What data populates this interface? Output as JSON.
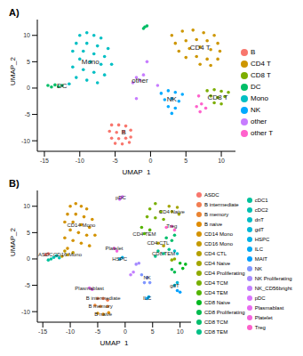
{
  "chart_data": [
    {
      "type": "scatter",
      "title": "A)",
      "x_label": "UMAP_1",
      "y_label": "UMAP_2",
      "xlim": [
        -16,
        12
      ],
      "ylim": [
        -12,
        13
      ],
      "xticks": [
        -15,
        -10,
        -5,
        0,
        5,
        10
      ],
      "yticks": [
        -10,
        -5,
        0,
        5,
        10
      ],
      "legend": "right",
      "series": [
        {
          "name": "B",
          "color": "#F8766D",
          "x": [
            -5.5,
            -4.5,
            -3.5,
            -5.8,
            -4.8,
            -3.8,
            -2.8,
            -5.5,
            -4.5,
            -3.5,
            -2.8,
            -5,
            -4,
            -3
          ],
          "y": [
            -7,
            -7,
            -7.2,
            -8.2,
            -8.4,
            -8.3,
            -8,
            -9.5,
            -9.6,
            -9.5,
            -9.3,
            -10.5,
            -10.6,
            -10.3
          ]
        },
        {
          "name": "CD4 T",
          "color": "#CD9600",
          "x": [
            3,
            4.5,
            6,
            7.5,
            9,
            3.5,
            5,
            6.5,
            8,
            9.5,
            4,
            5.5,
            7,
            8.5,
            9.8,
            5,
            6.5,
            8,
            9.5,
            7,
            8.5
          ],
          "y": [
            10,
            10.8,
            11,
            10.5,
            10,
            8.5,
            9,
            9.2,
            9,
            8.5,
            7,
            7.5,
            7.8,
            7.3,
            7,
            5.8,
            6,
            5.5,
            5.5,
            4.5,
            4.3
          ]
        },
        {
          "name": "CD8 T",
          "color": "#7CAE00",
          "x": [
            8,
            9,
            10,
            11,
            8.5,
            9.5,
            10.5,
            9,
            10
          ],
          "y": [
            -0.5,
            -0.3,
            -0.6,
            -0.8,
            -1.5,
            -1.8,
            -1.6,
            -2.8,
            -3
          ]
        },
        {
          "name": "DC",
          "color": "#00BE67",
          "x": [
            -14.5,
            -14,
            -13.5,
            -13,
            -12.5,
            -0.8,
            -0.5,
            -1
          ],
          "y": [
            0.5,
            0.2,
            0.6,
            0.3,
            0.5,
            11.6,
            11.8,
            11.3
          ]
        },
        {
          "name": "Mono",
          "color": "#00BFC4",
          "x": [
            -10,
            -9,
            -8,
            -7,
            -10.5,
            -9,
            -7.5,
            -6,
            -11,
            -9.5,
            -8,
            -6.5,
            -10,
            -8.5,
            -7,
            -5.5,
            -11,
            -9.5,
            -8,
            -6.5,
            -10.5,
            -9,
            -11.5,
            -7.5
          ],
          "y": [
            10,
            10.5,
            10,
            9.5,
            8.5,
            8.5,
            8,
            7.5,
            7,
            7,
            6.5,
            6,
            5.5,
            5,
            4.5,
            4.5,
            4,
            3.5,
            3,
            2.5,
            2,
            1.5,
            0.8,
            1
          ]
        },
        {
          "name": "NK",
          "color": "#00A9FF",
          "x": [
            1.5,
            2.5,
            3.5,
            4.5,
            2,
            3,
            4,
            2.5,
            3.5,
            3
          ],
          "y": [
            -1,
            -0.5,
            -0.8,
            -1.2,
            -2.2,
            -2,
            -2.5,
            -3.5,
            -3.8,
            -4.8
          ]
        },
        {
          "name": "other",
          "color": "#C77CFF",
          "x": [
            -2,
            -1.5,
            -2.5,
            -1,
            1,
            -2,
            -0.5
          ],
          "y": [
            2,
            1.5,
            1,
            2.5,
            0.5,
            -2,
            5
          ]
        },
        {
          "name": "other T",
          "color": "#FF61CC",
          "x": [
            6.5,
            7.2,
            7.8,
            7,
            6.8
          ],
          "y": [
            -3.5,
            -3,
            -3.8,
            -4.5,
            -1.5
          ]
        }
      ]
    },
    {
      "type": "scatter",
      "title": "B)",
      "x_label": "UMAP_1",
      "y_label": "UMAP_2",
      "xlim": [
        -16,
        12
      ],
      "ylim": [
        -12,
        13
      ],
      "xticks": [
        -15,
        -10,
        -5,
        0,
        5,
        10
      ],
      "yticks": [
        -10,
        -5,
        0,
        5,
        10
      ],
      "legend": "right",
      "series": [
        {
          "name": "ASDC",
          "color": "#F8766D",
          "x": [
            -14.5,
            -14
          ],
          "y": [
            0.8,
            1
          ]
        },
        {
          "name": "B intermediate",
          "color": "#F27D52",
          "x": [
            -5,
            -4,
            -3.2
          ],
          "y": [
            -7.5,
            -7.5,
            -7.8
          ]
        },
        {
          "name": "B memory",
          "color": "#EA8331",
          "x": [
            -5.5,
            -4.5,
            -3.2
          ],
          "y": [
            -8.8,
            -9,
            -9
          ]
        },
        {
          "name": "B naive",
          "color": "#E08B00",
          "x": [
            -5,
            -4,
            -3
          ],
          "y": [
            -10.3,
            -10.5,
            -10.2
          ]
        },
        {
          "name": "CD14 Mono",
          "color": "#D39200",
          "x": [
            -10,
            -9,
            -8,
            -7,
            -10.5,
            -9,
            -7.5,
            -6,
            -11,
            -9.5,
            -8,
            -6.5,
            -10,
            -8.5,
            -7,
            -5.5,
            -11,
            -9.5,
            -8,
            -6.5,
            -10.5
          ],
          "y": [
            10,
            10.5,
            10,
            9.5,
            8.5,
            8.5,
            8,
            7.5,
            7,
            7,
            6.5,
            6,
            5.5,
            5,
            4.5,
            4.5,
            4,
            3.5,
            3,
            2.5,
            2
          ]
        },
        {
          "name": "CD16 Mono",
          "color": "#C49A00",
          "x": [
            -11,
            -10.5,
            -9.5,
            -11.5
          ],
          "y": [
            1.5,
            0.8,
            1.2,
            0.5
          ]
        },
        {
          "name": "CD4 CTL",
          "color": "#B49F00",
          "x": [
            6,
            7
          ],
          "y": [
            3,
            2.5
          ]
        },
        {
          "name": "CD4 Naive",
          "color": "#A3A500",
          "x": [
            8,
            9.5,
            8.5,
            9.8
          ],
          "y": [
            10,
            9.8,
            9,
            8.5
          ]
        },
        {
          "name": "CD4 Proliferating",
          "color": "#8FAA00",
          "x": [
            8.5,
            9
          ],
          "y": [
            -0.2,
            0
          ]
        },
        {
          "name": "CD4 TCM",
          "color": "#77AF00",
          "x": [
            4.5,
            5.5,
            6.5,
            4,
            5.5,
            7
          ],
          "y": [
            9.5,
            10.5,
            9,
            8,
            7.8,
            7.5
          ]
        },
        {
          "name": "CD4 TEM",
          "color": "#53B400",
          "x": [
            3,
            4.5,
            3.5
          ],
          "y": [
            6,
            5.5,
            4.8
          ]
        },
        {
          "name": "CD8 Naive",
          "color": "#00B81F",
          "x": [
            10,
            11,
            10.5
          ],
          "y": [
            -0.8,
            -1,
            -1.8
          ]
        },
        {
          "name": "CD8 Proliferating",
          "color": "#00BB4E",
          "x": [
            8.5,
            9
          ],
          "y": [
            -2,
            -2.5
          ]
        },
        {
          "name": "CD8 TCM",
          "color": "#00BE6C",
          "x": [
            7.5,
            8.5,
            9
          ],
          "y": [
            4,
            3.5,
            4.5
          ]
        },
        {
          "name": "CD8 TEM",
          "color": "#00C086",
          "x": [
            6,
            7,
            8,
            5.5
          ],
          "y": [
            1.5,
            1,
            1.8,
            0.5
          ]
        },
        {
          "name": "cDC1",
          "color": "#00C19C",
          "x": [
            -14,
            -13.5
          ],
          "y": [
            -0.2,
            0
          ]
        },
        {
          "name": "cDC2",
          "color": "#00C0B2",
          "x": [
            -13,
            -12.5,
            -12
          ],
          "y": [
            0.3,
            0.6,
            0.2
          ]
        },
        {
          "name": "dnT",
          "color": "#00BDC7",
          "x": [
            9,
            9.5
          ],
          "y": [
            1.5,
            1
          ]
        },
        {
          "name": "gdT",
          "color": "#00B8D9",
          "x": [
            9,
            9.5
          ],
          "y": [
            -5,
            -4.5
          ]
        },
        {
          "name": "HSPC",
          "color": "#00B2E9",
          "x": [
            -1,
            -0.5
          ],
          "y": [
            0,
            0.3
          ]
        },
        {
          "name": "ILC",
          "color": "#00AAF6",
          "x": [
            4,
            4.3
          ],
          "y": [
            -7.5,
            -7.2
          ]
        },
        {
          "name": "MAIT",
          "color": "#00A0FF",
          "x": [
            9.5,
            10
          ],
          "y": [
            -6,
            -6.3
          ]
        },
        {
          "name": "NK",
          "color": "#7F96FF",
          "x": [
            3,
            4,
            3.5,
            4.5
          ],
          "y": [
            -3,
            -3.5,
            -4.5,
            -4.5
          ]
        },
        {
          "name": "NK Proliferating",
          "color": "#A58AFF",
          "x": [
            2,
            2.5
          ],
          "y": [
            -1,
            -0.8
          ]
        },
        {
          "name": "NK_CD56bright",
          "color": "#C27FFF",
          "x": [
            1.5,
            1
          ],
          "y": [
            -2.5,
            -3
          ]
        },
        {
          "name": "pDC",
          "color": "#D874FD",
          "x": [
            -0.8,
            -0.5,
            -1
          ],
          "y": [
            11.6,
            11.8,
            11.3
          ]
        },
        {
          "name": "Plasmablast",
          "color": "#E86BF0",
          "x": [
            -6.5,
            -6
          ],
          "y": [
            -5.5,
            -5.8
          ]
        },
        {
          "name": "Platelet",
          "color": "#F464DF",
          "x": [
            -2,
            -1.5
          ],
          "y": [
            2,
            1.5
          ]
        },
        {
          "name": "Treg",
          "color": "#FC61CA",
          "x": [
            7.5,
            8.5,
            9
          ],
          "y": [
            6,
            6.2,
            5.5
          ]
        }
      ]
    }
  ]
}
